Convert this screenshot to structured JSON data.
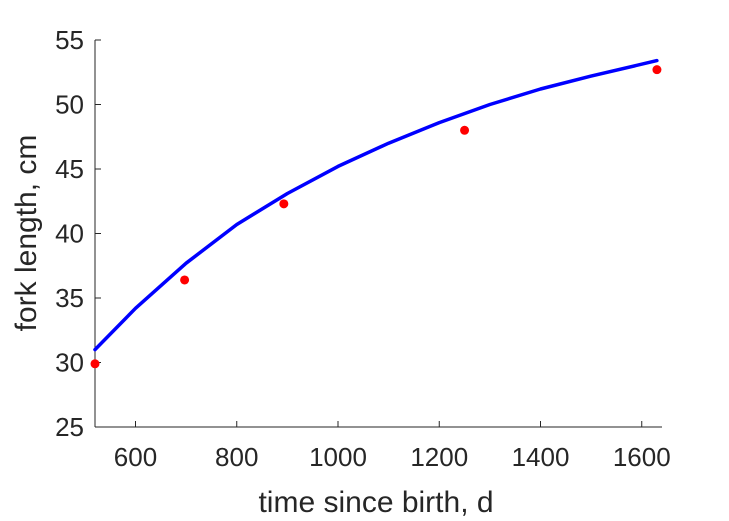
{
  "chart_data": {
    "type": "scatter",
    "title": "",
    "xlabel": "time since birth, d",
    "ylabel": "fork length, cm",
    "xlim": [
      520,
      1640
    ],
    "ylim": [
      25,
      55
    ],
    "xticks": [
      600,
      800,
      1000,
      1200,
      1400,
      1600
    ],
    "yticks": [
      25,
      30,
      35,
      40,
      45,
      50,
      55
    ],
    "grid": false,
    "legend": "none",
    "series": [
      {
        "kind": "scatter",
        "color": "#ff0000",
        "x": [
          520,
          697,
          893,
          1250,
          1630
        ],
        "y": [
          29.9,
          36.4,
          42.3,
          48.0,
          52.7
        ]
      },
      {
        "kind": "line",
        "color": "#0000ff",
        "x": [
          520,
          600,
          700,
          800,
          900,
          1000,
          1100,
          1200,
          1300,
          1400,
          1500,
          1630
        ],
        "y": [
          31.0,
          34.2,
          37.7,
          40.7,
          43.1,
          45.2,
          47.0,
          48.6,
          50.0,
          51.2,
          52.2,
          53.4
        ]
      }
    ]
  }
}
